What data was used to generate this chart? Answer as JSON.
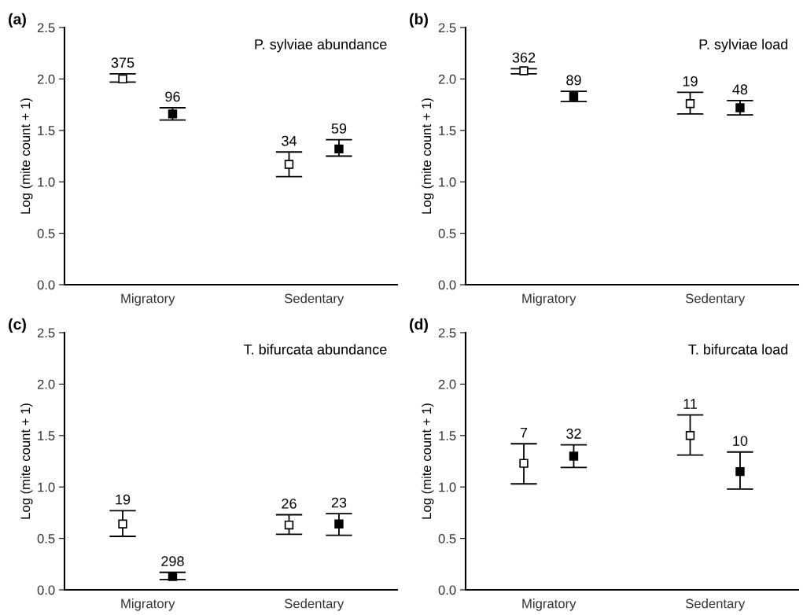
{
  "chart_data": [
    {
      "type": "scatter",
      "title": "(a)",
      "ylabel": "Log (mite count + 1)",
      "categories": [
        "Migratory",
        "Sedentary"
      ],
      "ylim": [
        0,
        2.5
      ],
      "yticks": [
        {
          "value": 0,
          "label": "0.0"
        },
        0.5,
        {
          "value": 1,
          "label": "1.0"
        },
        1.5,
        {
          "value": 2,
          "label": "2.0"
        },
        2.5
      ],
      "marker": "square",
      "grid": false,
      "annotations": [
        "P. sylviae abundance",
        "375",
        "96",
        "34",
        "59"
      ],
      "series": [
        {
          "color": "#ffffff",
          "values": [
            2.0,
            1.17
          ],
          "errors": [
            [
              1.97,
              2.05
            ],
            [
              1.05,
              1.29
            ]
          ]
        },
        {
          "color": "#000000",
          "values": [
            1.66,
            1.32
          ],
          "errors": [
            [
              1.6,
              1.72
            ],
            [
              1.25,
              1.41
            ]
          ]
        }
      ]
    },
    {
      "type": "scatter",
      "title": "(b)",
      "ylabel": "Log (mite count + 1)",
      "categories": [
        "Migratory",
        "Sedentary"
      ],
      "ylim": [
        0,
        2.5
      ],
      "yticks": [
        {
          "value": 0,
          "label": "0.0"
        },
        0.5,
        {
          "value": 1,
          "label": "1.0"
        },
        1.5,
        {
          "value": 2,
          "label": "2.0"
        },
        2.5
      ],
      "marker": "square",
      "grid": false,
      "annotations": [
        "P. sylviae load",
        "362",
        "89",
        "19",
        "48"
      ],
      "series": [
        {
          "color": "#ffffff",
          "values": [
            2.08,
            1.76
          ],
          "errors": [
            [
              2.05,
              2.1
            ],
            [
              1.66,
              1.87
            ]
          ]
        },
        {
          "color": "#000000",
          "values": [
            1.83,
            1.72
          ],
          "errors": [
            [
              1.78,
              1.88
            ],
            [
              1.65,
              1.79
            ]
          ]
        }
      ]
    },
    {
      "type": "scatter",
      "title": "(c)",
      "ylabel": "Log (mite count + 1)",
      "categories": [
        "Migratory",
        "Sedentary"
      ],
      "ylim": [
        0,
        2.5
      ],
      "yticks": [
        {
          "value": 0,
          "label": "0.0"
        },
        0.5,
        {
          "value": 1,
          "label": "1.0"
        },
        1.5,
        {
          "value": 2,
          "label": "2.0"
        },
        2.5
      ],
      "marker": "square",
      "grid": false,
      "annotations": [
        "T. bifurcata abundance",
        "19",
        "298",
        "26",
        "23"
      ],
      "series": [
        {
          "color": "#ffffff",
          "values": [
            0.64,
            0.63
          ],
          "errors": [
            [
              0.52,
              0.77
            ],
            [
              0.54,
              0.73
            ]
          ]
        },
        {
          "color": "#000000",
          "values": [
            0.13,
            0.64
          ],
          "errors": [
            [
              0.1,
              0.17
            ],
            [
              0.53,
              0.74
            ]
          ]
        }
      ]
    },
    {
      "type": "scatter",
      "title": "(d)",
      "ylabel": "Log (mite count + 1)",
      "categories": [
        "Migratory",
        "Sedentary"
      ],
      "ylim": [
        0,
        2.5
      ],
      "yticks": [
        {
          "value": 0,
          "label": "0.0"
        },
        0.5,
        {
          "value": 1,
          "label": "1.0"
        },
        1.5,
        {
          "value": 2,
          "label": "2.0"
        },
        2.5
      ],
      "marker": "square",
      "grid": false,
      "annotations": [
        "T. bifurcata load",
        "7",
        "32",
        "11",
        "10"
      ],
      "series": [
        {
          "color": "#ffffff",
          "values": [
            1.23,
            1.5
          ],
          "errors": [
            [
              1.03,
              1.42
            ],
            [
              1.31,
              1.7
            ]
          ]
        },
        {
          "color": "#000000",
          "values": [
            1.3,
            1.15
          ],
          "errors": [
            [
              1.19,
              1.41
            ],
            [
              0.98,
              1.34
            ]
          ]
        }
      ]
    }
  ]
}
